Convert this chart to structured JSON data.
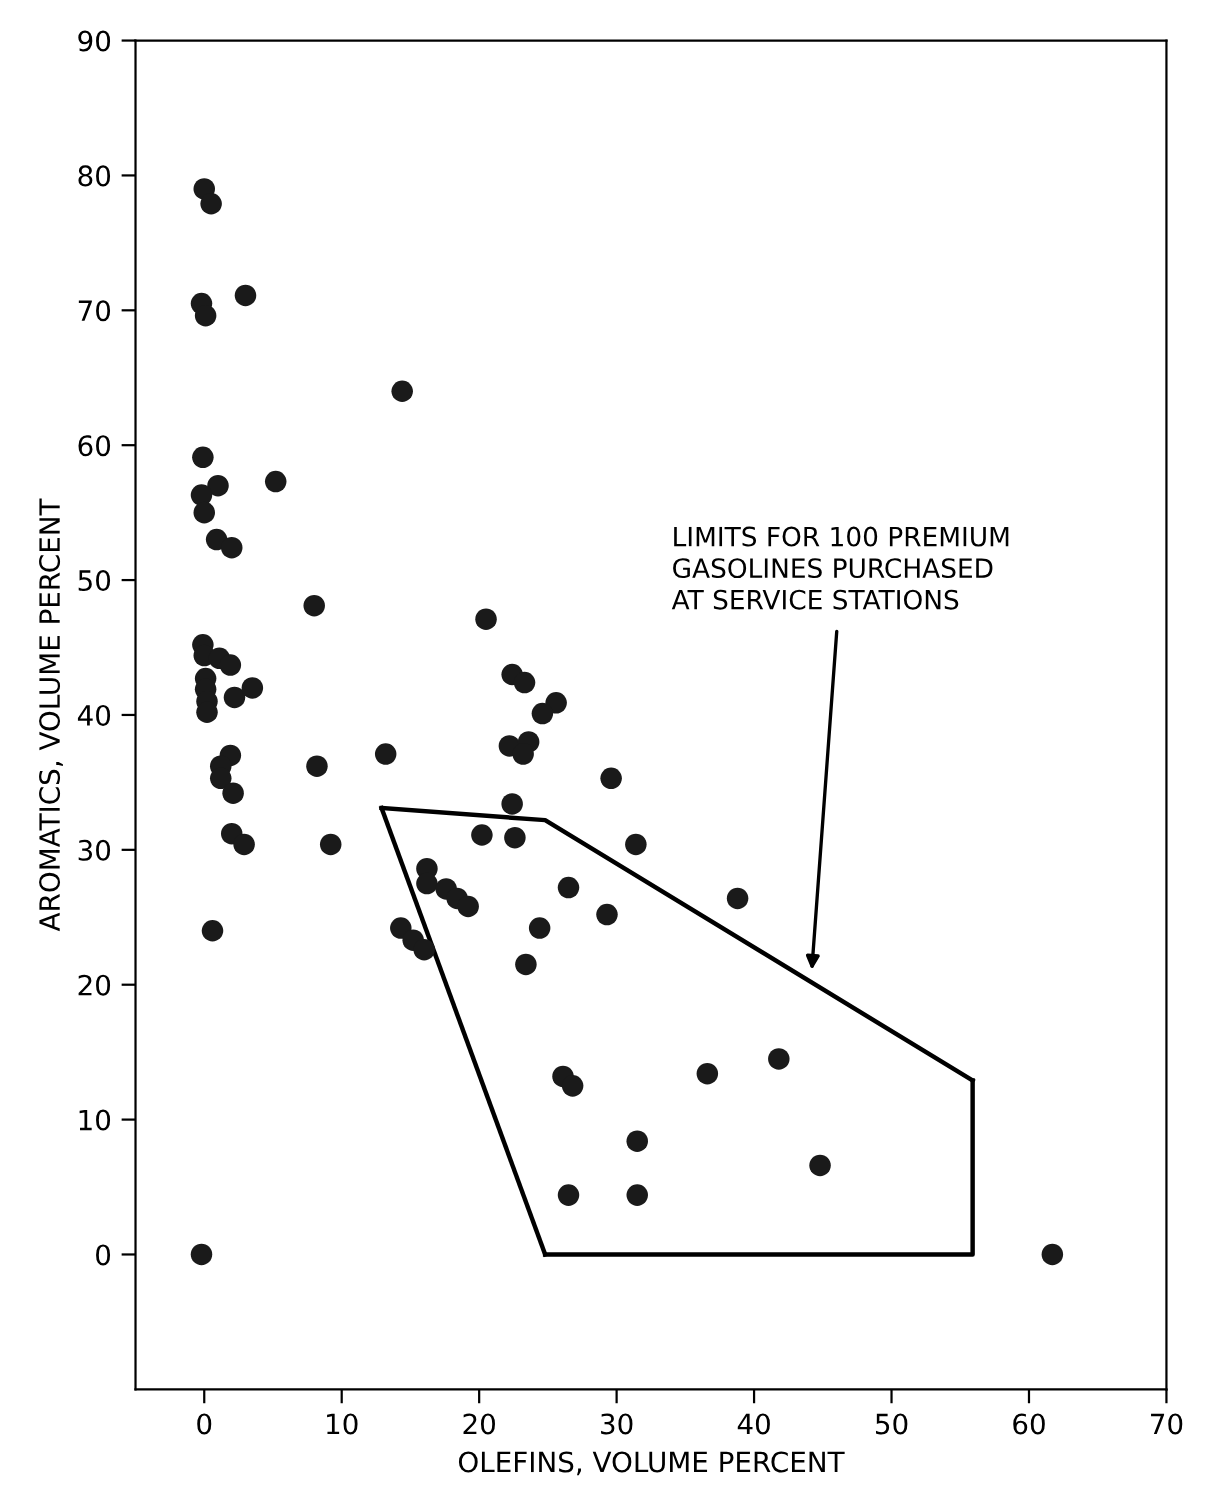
{
  "chart_data": {
    "type": "scatter",
    "xlabel": "OLEFINS, VOLUME PERCENT",
    "ylabel": "AROMATICS, VOLUME PERCENT",
    "xlim": [
      -5,
      70
    ],
    "ylim": [
      -10,
      90
    ],
    "xticks": [
      0,
      10,
      20,
      30,
      40,
      50,
      60,
      70
    ],
    "yticks": [
      0,
      10,
      20,
      30,
      40,
      50,
      60,
      70,
      80,
      90
    ],
    "grid": false,
    "legend": false,
    "marker": "circle",
    "series": [
      {
        "color": "#1a1a1a",
        "x": [
          0.0,
          0.5,
          3.0,
          -0.2,
          0.1,
          -0.1,
          1.0,
          5.2,
          -0.2,
          0.0,
          0.9,
          2.0,
          8.0,
          -0.1,
          0.0,
          1.1,
          1.9,
          0.1,
          0.1,
          0.2,
          0.2,
          2.2,
          3.5,
          8.2,
          1.9,
          1.2,
          1.2,
          2.1,
          2.0,
          2.9,
          0.6,
          -0.2,
          14.4,
          20.5,
          22.4,
          23.3,
          25.6,
          24.6,
          13.2,
          22.2,
          23.6,
          23.2,
          29.6,
          22.4,
          9.2,
          20.2,
          22.6,
          31.4,
          16.2,
          16.2,
          17.6,
          18.4,
          19.2,
          26.5,
          38.8,
          29.3,
          24.4,
          14.3,
          15.2,
          16.0,
          23.4,
          26.1,
          26.8,
          36.6,
          41.8,
          31.5,
          44.8,
          26.5,
          31.5,
          61.7
        ],
        "values": [
          79.0,
          77.9,
          71.1,
          70.5,
          69.6,
          59.1,
          57.0,
          57.3,
          56.3,
          55.0,
          53.0,
          52.4,
          48.1,
          45.2,
          44.4,
          44.2,
          43.7,
          42.7,
          41.9,
          41.0,
          40.2,
          41.3,
          42.0,
          36.2,
          37.0,
          36.2,
          35.3,
          34.2,
          31.2,
          30.4,
          24.0,
          0.0,
          64.0,
          47.1,
          43.0,
          42.4,
          40.9,
          40.1,
          37.1,
          37.7,
          38.0,
          37.1,
          35.3,
          33.4,
          30.4,
          31.1,
          30.9,
          30.4,
          28.6,
          27.5,
          27.1,
          26.4,
          25.8,
          27.2,
          26.4,
          25.2,
          24.2,
          24.2,
          23.3,
          22.6,
          21.5,
          13.2,
          12.5,
          13.4,
          14.5,
          8.4,
          6.6,
          4.4,
          4.4,
          0.0
        ]
      },
      {
        "type": "line",
        "color": "#000000",
        "marker": "none",
        "line_style": "solid",
        "x": [
          12.9,
          24.8,
          55.9
        ],
        "values": [
          33.1,
          32.2,
          12.9
        ]
      },
      {
        "type": "line",
        "color": "#000000",
        "marker": "none",
        "line_style": "solid",
        "x": [
          12.9,
          24.8
        ],
        "values": [
          33.1,
          0.0
        ]
      },
      {
        "type": "line",
        "color": "#000000",
        "marker": "none",
        "line_style": "solid",
        "x": [
          24.8,
          55.9,
          55.9
        ],
        "values": [
          0.0,
          0.0,
          12.9
        ]
      }
    ],
    "annotations": [
      {
        "text": "LIMITS FOR 100 PREMIUM\nGASOLINES PURCHASED\nAT SERVICE STATIONS",
        "x": 44.2,
        "y": 21.1
      }
    ]
  }
}
